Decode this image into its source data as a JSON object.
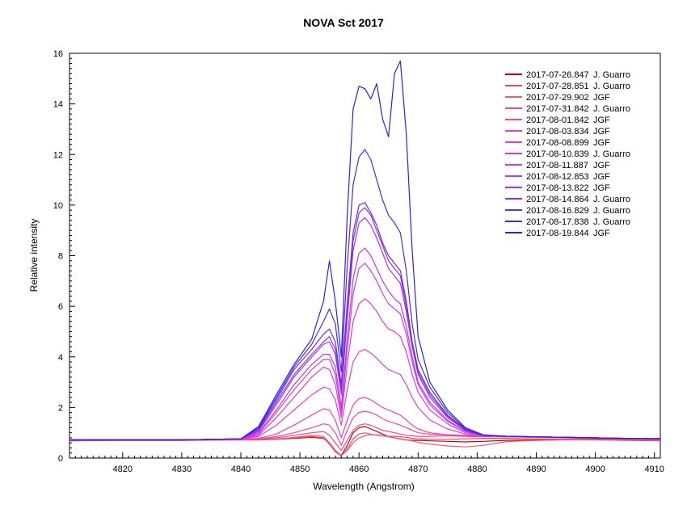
{
  "chart_data": {
    "type": "line",
    "title": "NOVA Sct 2017",
    "xlabel": "Wavelength (Angstrom)",
    "ylabel": "Relative intensity",
    "xlim": [
      4811,
      4911
    ],
    "ylim": [
      0,
      16
    ],
    "xticks": [
      4820,
      4830,
      4840,
      4850,
      4860,
      4870,
      4880,
      4890,
      4900,
      4910
    ],
    "yticks": [
      0,
      2,
      4,
      6,
      8,
      10,
      12,
      14,
      16
    ],
    "grid": false,
    "legend_position": "top-right",
    "x": [
      4811,
      4820,
      4830,
      4840,
      4843,
      4846,
      4849,
      4852,
      4854,
      4855,
      4856,
      4857,
      4858,
      4859,
      4860,
      4861,
      4862,
      4863,
      4864,
      4865,
      4866,
      4867,
      4868,
      4869,
      4870,
      4872,
      4875,
      4878,
      4881,
      4885,
      4890,
      4895,
      4900,
      4905,
      4911
    ],
    "series": [
      {
        "name": "2017-07-26.847",
        "observer": "J. Guarro",
        "color": "#cc0000",
        "values": [
          0.7,
          0.72,
          0.72,
          0.75,
          0.72,
          0.74,
          0.78,
          0.82,
          0.78,
          0.6,
          0.3,
          0.1,
          0.5,
          1.0,
          1.2,
          1.25,
          1.15,
          1.05,
          0.95,
          0.85,
          0.8,
          0.75,
          0.72,
          0.7,
          0.7,
          0.68,
          0.66,
          0.64,
          0.66,
          0.7,
          0.72,
          0.74,
          0.74,
          0.75,
          0.78
        ]
      },
      {
        "name": "2017-07-28.851",
        "observer": "J. Guarro",
        "color": "#f04858",
        "values": [
          0.68,
          0.7,
          0.7,
          0.72,
          0.72,
          0.75,
          0.8,
          0.85,
          0.8,
          0.55,
          0.25,
          0.08,
          0.35,
          0.75,
          0.95,
          1.0,
          0.95,
          0.9,
          0.88,
          0.86,
          0.86,
          0.84,
          0.82,
          0.78,
          0.76,
          0.74,
          0.74,
          0.76,
          0.78,
          0.78,
          0.76,
          0.74,
          0.72,
          0.7,
          0.68
        ]
      },
      {
        "name": "2017-07-29.902",
        "observer": "JGF",
        "color": "#f05878",
        "values": [
          0.68,
          0.7,
          0.7,
          0.72,
          0.72,
          0.75,
          0.82,
          0.9,
          0.85,
          0.6,
          0.3,
          0.1,
          0.3,
          0.6,
          0.8,
          0.88,
          0.92,
          0.92,
          0.88,
          0.84,
          0.8,
          0.76,
          0.72,
          0.68,
          0.62,
          0.55,
          0.48,
          0.44,
          0.5,
          0.65,
          0.7,
          0.72,
          0.72,
          0.72,
          0.72
        ]
      },
      {
        "name": "2017-07-31.842",
        "observer": "J. Guarro",
        "color": "#f0488c",
        "values": [
          0.7,
          0.72,
          0.72,
          0.75,
          0.75,
          0.8,
          0.9,
          1.0,
          1.05,
          0.9,
          0.6,
          0.3,
          0.7,
          1.1,
          1.3,
          1.35,
          1.3,
          1.2,
          1.1,
          1.05,
          1.0,
          0.95,
          0.9,
          0.88,
          0.86,
          0.86,
          0.88,
          0.86,
          0.84,
          0.84,
          0.82,
          0.8,
          0.78,
          0.76,
          0.74
        ]
      },
      {
        "name": "2017-08-01.842",
        "observer": "JGF",
        "color": "#ee48a0",
        "values": [
          0.7,
          0.72,
          0.72,
          0.75,
          0.76,
          0.85,
          1.0,
          1.2,
          1.35,
          1.3,
          1.0,
          0.5,
          1.1,
          1.6,
          1.8,
          1.85,
          1.8,
          1.7,
          1.55,
          1.45,
          1.38,
          1.3,
          1.2,
          1.1,
          1.0,
          0.95,
          0.92,
          0.9,
          0.88,
          0.86,
          0.84,
          0.82,
          0.8,
          0.78,
          0.76
        ]
      },
      {
        "name": "2017-08-03.834",
        "observer": "JGF",
        "color": "#ec40b8",
        "values": [
          0.7,
          0.72,
          0.72,
          0.75,
          0.78,
          0.95,
          1.3,
          1.7,
          1.95,
          1.9,
          1.5,
          0.8,
          1.5,
          2.1,
          2.35,
          2.4,
          2.3,
          2.15,
          2.0,
          1.9,
          1.8,
          1.7,
          1.5,
          1.3,
          1.15,
          1.0,
          0.92,
          0.88,
          0.86,
          0.84,
          0.82,
          0.8,
          0.78,
          0.76,
          0.74
        ]
      },
      {
        "name": "2017-08-08.899",
        "observer": "JGF",
        "color": "#e63ccc",
        "values": [
          0.72,
          0.72,
          0.72,
          0.76,
          0.85,
          1.3,
          1.9,
          2.5,
          2.8,
          2.75,
          2.3,
          1.3,
          2.7,
          3.8,
          4.2,
          4.3,
          4.15,
          3.95,
          3.7,
          3.5,
          3.4,
          3.3,
          2.9,
          2.4,
          2.0,
          1.5,
          1.15,
          0.95,
          0.88,
          0.86,
          0.84,
          0.82,
          0.8,
          0.78,
          0.76
        ]
      },
      {
        "name": "2017-08-10.839",
        "observer": "J. Guarro",
        "color": "#e038dc",
        "values": [
          0.72,
          0.72,
          0.72,
          0.76,
          0.9,
          1.6,
          2.4,
          3.2,
          3.6,
          3.5,
          2.9,
          1.6,
          3.7,
          5.4,
          6.1,
          6.3,
          6.1,
          5.8,
          5.4,
          5.1,
          5.0,
          4.8,
          4.2,
          3.3,
          2.6,
          1.9,
          1.35,
          1.0,
          0.9,
          0.86,
          0.84,
          0.82,
          0.8,
          0.78,
          0.76
        ]
      },
      {
        "name": "2017-08-11.887",
        "observer": "JGF",
        "color": "#d03ae6",
        "values": [
          0.72,
          0.72,
          0.72,
          0.76,
          0.95,
          1.8,
          2.7,
          3.5,
          3.9,
          3.9,
          3.3,
          1.8,
          4.3,
          6.5,
          7.5,
          7.7,
          7.4,
          7.0,
          6.5,
          6.1,
          5.9,
          5.7,
          4.9,
          3.8,
          2.9,
          2.1,
          1.45,
          1.05,
          0.9,
          0.86,
          0.84,
          0.82,
          0.8,
          0.78,
          0.76
        ]
      },
      {
        "name": "2017-08-12.853",
        "observer": "JGF",
        "color": "#bc38ea",
        "values": [
          0.72,
          0.72,
          0.72,
          0.76,
          1.0,
          1.9,
          2.9,
          3.7,
          4.1,
          4.1,
          3.6,
          2.0,
          4.7,
          7.1,
          8.1,
          8.3,
          8.0,
          7.5,
          7.0,
          6.6,
          6.3,
          6.1,
          5.2,
          4.0,
          3.0,
          2.2,
          1.5,
          1.05,
          0.9,
          0.86,
          0.84,
          0.82,
          0.8,
          0.78,
          0.76
        ]
      },
      {
        "name": "2017-08-13.822",
        "observer": "JGF",
        "color": "#a634ea",
        "values": [
          0.72,
          0.72,
          0.72,
          0.76,
          1.05,
          2.1,
          3.2,
          4.0,
          4.5,
          4.6,
          4.1,
          2.5,
          5.5,
          8.2,
          9.3,
          9.5,
          9.2,
          8.7,
          8.1,
          7.5,
          7.2,
          6.9,
          5.8,
          4.4,
          3.3,
          2.4,
          1.6,
          1.1,
          0.9,
          0.86,
          0.84,
          0.82,
          0.8,
          0.78,
          0.76
        ]
      },
      {
        "name": "2017-08-14.864",
        "observer": "J. Guarro",
        "color": "#8a30e6",
        "values": [
          0.72,
          0.72,
          0.72,
          0.76,
          1.1,
          2.2,
          3.3,
          4.1,
          4.6,
          4.8,
          4.3,
          2.7,
          5.8,
          8.6,
          9.7,
          9.9,
          9.6,
          9.0,
          8.4,
          7.8,
          7.5,
          7.2,
          6.0,
          4.5,
          3.4,
          2.5,
          1.65,
          1.1,
          0.9,
          0.86,
          0.84,
          0.82,
          0.8,
          0.78,
          0.76
        ]
      },
      {
        "name": "2017-08-16.829",
        "observer": "J. Guarro",
        "color": "#6a2ce0",
        "values": [
          0.72,
          0.72,
          0.72,
          0.76,
          1.15,
          2.3,
          3.5,
          4.3,
          4.9,
          5.1,
          4.6,
          2.9,
          6.1,
          8.9,
          10.0,
          10.1,
          9.7,
          9.2,
          8.5,
          8.0,
          7.7,
          7.4,
          6.2,
          4.6,
          3.5,
          2.6,
          1.7,
          1.12,
          0.9,
          0.86,
          0.84,
          0.82,
          0.8,
          0.78,
          0.76
        ]
      },
      {
        "name": "2017-08-17.838",
        "observer": "J. Guarro",
        "color": "#4a2ae0",
        "values": [
          0.72,
          0.72,
          0.72,
          0.76,
          1.2,
          2.4,
          3.6,
          4.5,
          5.4,
          5.9,
          5.3,
          3.4,
          7.6,
          10.8,
          11.9,
          12.2,
          11.8,
          11.0,
          10.2,
          9.6,
          9.3,
          8.9,
          7.4,
          5.3,
          3.9,
          2.8,
          1.8,
          1.15,
          0.9,
          0.86,
          0.84,
          0.82,
          0.8,
          0.78,
          0.76
        ]
      },
      {
        "name": "2017-08-19.844",
        "observer": "JGF",
        "color": "#2424e6",
        "values": [
          0.72,
          0.72,
          0.72,
          0.76,
          1.25,
          2.5,
          3.7,
          4.7,
          6.2,
          7.8,
          6.2,
          4.0,
          9.6,
          13.8,
          14.7,
          14.6,
          14.2,
          14.8,
          13.4,
          12.7,
          15.2,
          15.7,
          12.8,
          8.2,
          4.8,
          3.0,
          1.9,
          1.2,
          0.92,
          0.86,
          0.84,
          0.82,
          0.8,
          0.78,
          0.76
        ]
      }
    ]
  }
}
